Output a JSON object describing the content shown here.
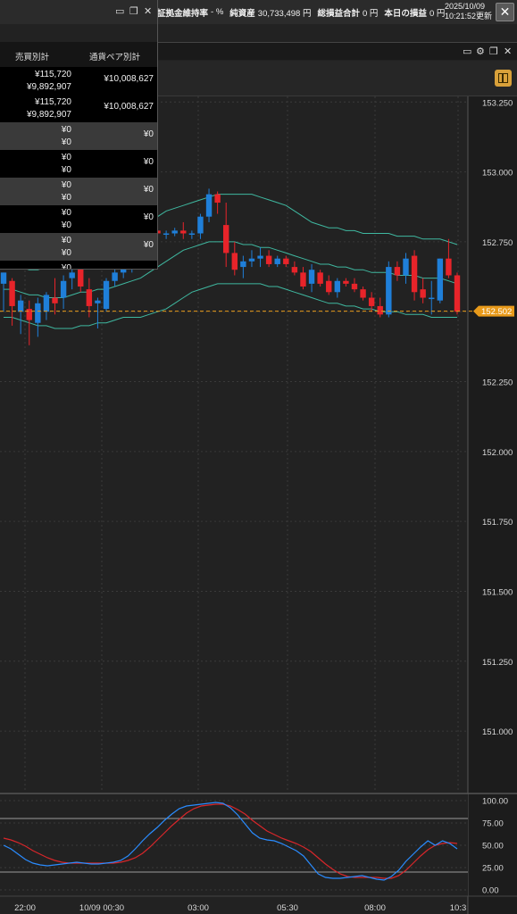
{
  "status": {
    "margin_ratio_label": "証拠金維持率",
    "margin_ratio_value": "- %",
    "net_assets_label": "純資産",
    "net_assets_value": "30,733,498 円",
    "total_pl_label": "総損益合計",
    "total_pl_value": "0 円",
    "today_pl_label": "本日の損益",
    "today_pl_value": "0 円",
    "update_date": "2025/10/09",
    "update_time": "10:21:52更新"
  },
  "panel": {
    "col_side": "売買別計",
    "col_pair": "通貨ペア別計",
    "rows": [
      {
        "v1": "¥115,720",
        "v2": "¥9,892,907",
        "pair": "¥10,008,627"
      },
      {
        "v1": "¥115,720",
        "v2": "¥9,892,907",
        "pair": "¥10,008,627"
      },
      {
        "v1": "¥0",
        "v2": "¥0",
        "pair": "¥0"
      },
      {
        "v1": "¥0",
        "v2": "¥0",
        "pair": "¥0"
      },
      {
        "v1": "¥0",
        "v2": "¥0",
        "pair": "¥0"
      },
      {
        "v1": "¥0",
        "v2": "¥0",
        "pair": "¥0"
      },
      {
        "v1": "¥0",
        "v2": "¥0",
        "pair": "¥0"
      },
      {
        "v1": "¥0",
        "v2": "",
        "pair": ""
      }
    ]
  },
  "chart_data": {
    "type": "candlestick",
    "current_price": "152.502",
    "price_axis": [
      "153.250",
      "153.000",
      "152.750",
      "152.500",
      "152.250",
      "152.000",
      "151.750",
      "151.500",
      "151.250",
      "151.000"
    ],
    "ylim": [
      150.78,
      153.27
    ],
    "time_labels": [
      "22:00",
      "10/09 00:30",
      "03:00",
      "05:30",
      "08:00",
      "10:3"
    ],
    "oscillator_axis": [
      "100.00",
      "75.00",
      "50.00",
      "25.00",
      "0.00"
    ],
    "oscillator_levels": [
      80,
      20
    ],
    "colors": {
      "up": "#1f7fd9",
      "down": "#e8242a",
      "band": "#3fb8a0",
      "osc_k": "#2a8cff",
      "osc_d": "#d8262a",
      "price_tag": "#e89a1a"
    },
    "candles": [
      {
        "o": 152.6,
        "h": 152.64,
        "l": 152.5,
        "c": 152.64
      },
      {
        "o": 152.61,
        "h": 152.62,
        "l": 152.45,
        "c": 152.52
      },
      {
        "o": 152.5,
        "h": 152.56,
        "l": 152.42,
        "c": 152.54
      },
      {
        "o": 152.51,
        "h": 152.54,
        "l": 152.38,
        "c": 152.47
      },
      {
        "o": 152.46,
        "h": 152.55,
        "l": 152.41,
        "c": 152.53
      },
      {
        "o": 152.5,
        "h": 152.57,
        "l": 152.47,
        "c": 152.56
      },
      {
        "o": 152.55,
        "h": 152.62,
        "l": 152.49,
        "c": 152.53
      },
      {
        "o": 152.55,
        "h": 152.63,
        "l": 152.51,
        "c": 152.61
      },
      {
        "o": 152.62,
        "h": 152.67,
        "l": 152.58,
        "c": 152.64
      },
      {
        "o": 152.66,
        "h": 152.73,
        "l": 152.57,
        "c": 152.59
      },
      {
        "o": 152.58,
        "h": 152.62,
        "l": 152.48,
        "c": 152.52
      },
      {
        "o": 152.53,
        "h": 152.55,
        "l": 152.44,
        "c": 152.54
      },
      {
        "o": 152.51,
        "h": 152.62,
        "l": 152.5,
        "c": 152.61
      },
      {
        "o": 152.61,
        "h": 152.68,
        "l": 152.59,
        "c": 152.64
      },
      {
        "o": 152.64,
        "h": 152.7,
        "l": 152.62,
        "c": 152.66
      },
      {
        "o": 152.66,
        "h": 152.74,
        "l": 152.64,
        "c": 152.72
      },
      {
        "o": 152.72,
        "h": 152.8,
        "l": 152.7,
        "c": 152.77
      },
      {
        "o": 152.77,
        "h": 152.82,
        "l": 152.75,
        "c": 152.79
      },
      {
        "o": 152.79,
        "h": 152.81,
        "l": 152.77,
        "c": 152.78
      },
      {
        "o": 152.78,
        "h": 152.79,
        "l": 152.76,
        "c": 152.78
      },
      {
        "o": 152.78,
        "h": 152.8,
        "l": 152.77,
        "c": 152.79
      },
      {
        "o": 152.79,
        "h": 152.82,
        "l": 152.76,
        "c": 152.78
      },
      {
        "o": 152.78,
        "h": 152.79,
        "l": 152.76,
        "c": 152.78
      },
      {
        "o": 152.78,
        "h": 152.85,
        "l": 152.76,
        "c": 152.84
      },
      {
        "o": 152.84,
        "h": 152.94,
        "l": 152.82,
        "c": 152.92
      },
      {
        "o": 152.92,
        "h": 152.93,
        "l": 152.85,
        "c": 152.89
      },
      {
        "o": 152.81,
        "h": 152.89,
        "l": 152.66,
        "c": 152.71
      },
      {
        "o": 152.71,
        "h": 152.75,
        "l": 152.63,
        "c": 152.65
      },
      {
        "o": 152.66,
        "h": 152.7,
        "l": 152.62,
        "c": 152.68
      },
      {
        "o": 152.68,
        "h": 152.72,
        "l": 152.66,
        "c": 152.69
      },
      {
        "o": 152.69,
        "h": 152.73,
        "l": 152.66,
        "c": 152.7
      },
      {
        "o": 152.7,
        "h": 152.72,
        "l": 152.66,
        "c": 152.67
      },
      {
        "o": 152.67,
        "h": 152.7,
        "l": 152.66,
        "c": 152.69
      },
      {
        "o": 152.69,
        "h": 152.7,
        "l": 152.66,
        "c": 152.67
      },
      {
        "o": 152.66,
        "h": 152.68,
        "l": 152.63,
        "c": 152.64
      },
      {
        "o": 152.64,
        "h": 152.66,
        "l": 152.58,
        "c": 152.59
      },
      {
        "o": 152.6,
        "h": 152.67,
        "l": 152.57,
        "c": 152.65
      },
      {
        "o": 152.64,
        "h": 152.65,
        "l": 152.59,
        "c": 152.6
      },
      {
        "o": 152.61,
        "h": 152.63,
        "l": 152.56,
        "c": 152.57
      },
      {
        "o": 152.57,
        "h": 152.62,
        "l": 152.55,
        "c": 152.61
      },
      {
        "o": 152.61,
        "h": 152.62,
        "l": 152.59,
        "c": 152.6
      },
      {
        "o": 152.6,
        "h": 152.62,
        "l": 152.57,
        "c": 152.58
      },
      {
        "o": 152.58,
        "h": 152.59,
        "l": 152.54,
        "c": 152.55
      },
      {
        "o": 152.55,
        "h": 152.57,
        "l": 152.5,
        "c": 152.52
      },
      {
        "o": 152.52,
        "h": 152.55,
        "l": 152.48,
        "c": 152.49
      },
      {
        "o": 152.49,
        "h": 152.68,
        "l": 152.48,
        "c": 152.66
      },
      {
        "o": 152.66,
        "h": 152.68,
        "l": 152.61,
        "c": 152.63
      },
      {
        "o": 152.63,
        "h": 152.71,
        "l": 152.6,
        "c": 152.69
      },
      {
        "o": 152.7,
        "h": 152.72,
        "l": 152.54,
        "c": 152.57
      },
      {
        "o": 152.58,
        "h": 152.62,
        "l": 152.53,
        "c": 152.55
      },
      {
        "o": 152.55,
        "h": 152.61,
        "l": 152.49,
        "c": 152.55
      },
      {
        "o": 152.54,
        "h": 152.69,
        "l": 152.53,
        "c": 152.69
      },
      {
        "o": 152.69,
        "h": 152.76,
        "l": 152.62,
        "c": 152.63
      },
      {
        "o": 152.63,
        "h": 152.64,
        "l": 152.49,
        "c": 152.5
      }
    ],
    "band_upper": [
      152.67,
      152.67,
      152.66,
      152.65,
      152.65,
      152.66,
      152.66,
      152.67,
      152.68,
      152.7,
      152.7,
      152.7,
      152.71,
      152.72,
      152.73,
      152.75,
      152.78,
      152.82,
      152.84,
      152.86,
      152.87,
      152.88,
      152.89,
      152.9,
      152.91,
      152.92,
      152.92,
      152.92,
      152.92,
      152.92,
      152.91,
      152.9,
      152.89,
      152.88,
      152.86,
      152.84,
      152.82,
      152.81,
      152.8,
      152.8,
      152.79,
      152.79,
      152.78,
      152.78,
      152.78,
      152.78,
      152.77,
      152.77,
      152.77,
      152.76,
      152.76,
      152.76,
      152.75,
      152.74
    ],
    "band_middle": [
      152.58,
      152.58,
      152.57,
      152.56,
      152.56,
      152.55,
      152.55,
      152.55,
      152.56,
      152.57,
      152.57,
      152.58,
      152.58,
      152.59,
      152.6,
      152.61,
      152.62,
      152.64,
      152.66,
      152.68,
      152.7,
      152.72,
      152.73,
      152.74,
      152.75,
      152.75,
      152.75,
      152.75,
      152.74,
      152.74,
      152.73,
      152.73,
      152.72,
      152.71,
      152.7,
      152.69,
      152.68,
      152.67,
      152.67,
      152.66,
      152.66,
      152.65,
      152.65,
      152.64,
      152.64,
      152.64,
      152.63,
      152.63,
      152.63,
      152.62,
      152.62,
      152.62,
      152.61,
      152.6
    ],
    "band_lower": [
      152.48,
      152.48,
      152.47,
      152.46,
      152.45,
      152.45,
      152.44,
      152.44,
      152.44,
      152.45,
      152.45,
      152.46,
      152.46,
      152.47,
      152.48,
      152.48,
      152.48,
      152.49,
      152.5,
      152.51,
      152.53,
      152.55,
      152.57,
      152.58,
      152.59,
      152.6,
      152.6,
      152.6,
      152.6,
      152.6,
      152.6,
      152.59,
      152.59,
      152.58,
      152.57,
      152.56,
      152.55,
      152.54,
      152.53,
      152.53,
      152.52,
      152.52,
      152.51,
      152.51,
      152.5,
      152.5,
      152.5,
      152.49,
      152.49,
      152.49,
      152.48,
      152.48,
      152.48,
      152.48
    ],
    "osc_k": [
      50,
      46,
      40,
      34,
      30,
      28,
      27,
      28,
      29,
      30,
      31,
      30,
      29,
      29,
      30,
      31,
      33,
      38,
      46,
      55,
      63,
      70,
      78,
      85,
      91,
      94,
      95,
      96,
      97,
      98,
      97,
      92,
      84,
      74,
      64,
      58,
      56,
      55,
      52,
      48,
      44,
      38,
      28,
      18,
      14,
      13,
      13,
      14,
      15,
      16,
      14,
      12,
      11,
      15,
      22,
      32,
      40,
      48,
      55,
      50,
      55,
      52,
      46
    ],
    "osc_d": [
      58,
      56,
      53,
      49,
      44,
      40,
      36,
      33,
      31,
      30,
      30,
      30,
      30,
      30,
      30,
      30,
      31,
      33,
      36,
      41,
      48,
      56,
      64,
      72,
      79,
      86,
      91,
      94,
      95,
      96,
      96,
      94,
      90,
      85,
      78,
      72,
      66,
      62,
      58,
      55,
      52,
      48,
      43,
      36,
      29,
      23,
      18,
      15,
      14,
      14,
      14,
      14,
      13,
      13,
      16,
      22,
      30,
      38,
      45,
      50,
      52,
      53,
      52
    ]
  }
}
